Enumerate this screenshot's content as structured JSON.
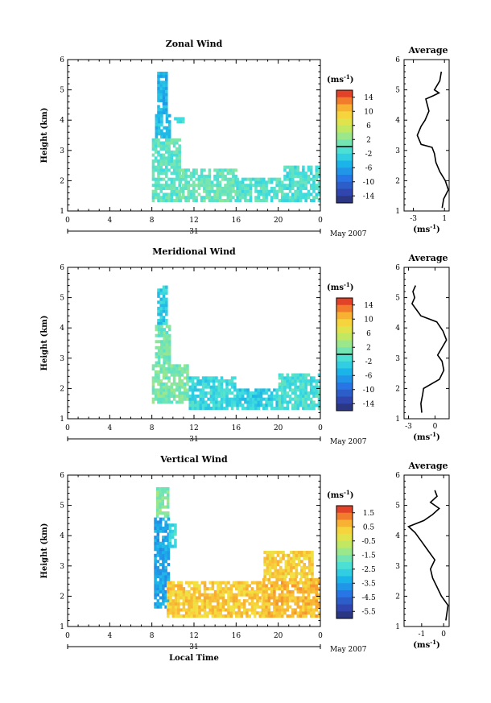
{
  "panels": [
    {
      "id": "zonal",
      "title": "Zonal Wind",
      "ylabel": "Height (km)",
      "ylim": [
        1,
        6
      ],
      "yticks": [
        "1",
        "2",
        "3",
        "4",
        "5",
        "6"
      ],
      "xticks": [
        "0",
        "4",
        "8",
        "12",
        "16",
        "20",
        "0"
      ],
      "xlim": [
        0,
        24
      ],
      "date_day": "31",
      "date_month": "May 2007",
      "colorbar": {
        "unit": "(ms",
        "unit_exp": "-1",
        "unit_close": ")",
        "labels": [
          "14",
          "10",
          "6",
          "2",
          "-2",
          "-6",
          "-10",
          "-14"
        ],
        "range": [
          -16,
          16
        ],
        "zero_line": 2
      },
      "average": {
        "title": "Average",
        "unit": "(ms",
        "unit_exp": "-1",
        "unit_close": ")",
        "xticks": [
          "-3",
          "1"
        ],
        "xtick_values": [
          -3,
          1
        ],
        "xlim": [
          -4.2,
          1.6
        ],
        "ylim": [
          1,
          6
        ],
        "yticks": [
          "1",
          "2",
          "3",
          "4",
          "5",
          "6"
        ]
      }
    },
    {
      "id": "meridional",
      "title": "Meridional Wind",
      "ylabel": "Height (km)",
      "ylim": [
        1,
        6
      ],
      "yticks": [
        "1",
        "2",
        "3",
        "4",
        "5",
        "6"
      ],
      "xticks": [
        "0",
        "4",
        "8",
        "12",
        "16",
        "20",
        "0"
      ],
      "xlim": [
        0,
        24
      ],
      "date_day": "31",
      "date_month": "May 2007",
      "colorbar": {
        "unit": "(ms",
        "unit_exp": "-1",
        "unit_close": ")",
        "labels": [
          "14",
          "10",
          "6",
          "2",
          "-2",
          "-6",
          "-10",
          "-14"
        ],
        "range": [
          -16,
          16
        ],
        "zero_line": 2
      },
      "average": {
        "title": "Average",
        "unit": "(ms",
        "unit_exp": "-1",
        "unit_close": ")",
        "xticks": [
          "-3",
          "0"
        ],
        "xtick_values": [
          -3,
          0
        ],
        "xlim": [
          -3.5,
          1.6
        ],
        "ylim": [
          1,
          6
        ],
        "yticks": [
          "1",
          "2",
          "3",
          "4",
          "5",
          "6"
        ]
      }
    },
    {
      "id": "vertical",
      "title": "Vertical Wind",
      "ylabel": "Height (km)",
      "xlabel": "Local Time",
      "ylim": [
        1,
        6
      ],
      "yticks": [
        "1",
        "2",
        "3",
        "4",
        "5",
        "6"
      ],
      "xticks": [
        "0",
        "4",
        "8",
        "12",
        "16",
        "20",
        "0"
      ],
      "xlim": [
        0,
        24
      ],
      "date_day": "31",
      "date_month": "May 2007",
      "colorbar": {
        "unit": "(ms",
        "unit_exp": "-1",
        "unit_close": ")",
        "labels": [
          "1.5",
          "0.5",
          "-0.5",
          "-1.5",
          "-2.5",
          "-3.5",
          "-4.5",
          "-5.5"
        ],
        "range": [
          -6,
          2
        ],
        "zero_line": null
      },
      "average": {
        "title": "Average",
        "unit": "(ms",
        "unit_exp": "-1",
        "unit_close": ")",
        "xticks": [
          "-1",
          "0"
        ],
        "xtick_values": [
          -1,
          0
        ],
        "xlim": [
          -1.8,
          0.25
        ],
        "ylim": [
          1,
          6
        ],
        "yticks": [
          "1",
          "2",
          "3",
          "4",
          "5",
          "6"
        ]
      }
    }
  ],
  "chart_data": [
    {
      "type": "heatmap",
      "title": "Zonal Wind",
      "ylabel": "Height (km)",
      "ylim": [
        1,
        6
      ],
      "xlim": [
        0,
        24
      ],
      "color_range": [
        -16,
        16
      ],
      "cell_size": [
        0.25,
        0.1
      ],
      "regions": [
        {
          "x": [
            8.5,
            9.5
          ],
          "y": [
            4.2,
            5.6
          ],
          "value": -5
        },
        {
          "x": [
            8.3,
            9.7
          ],
          "y": [
            3.4,
            4.2
          ],
          "value": -4
        },
        {
          "x": [
            10.1,
            11.0
          ],
          "y": [
            3.9,
            4.1
          ],
          "value": -2
        },
        {
          "x": [
            8.0,
            10.6
          ],
          "y": [
            1.3,
            3.4
          ],
          "value": 0
        },
        {
          "x": [
            10.6,
            16.0
          ],
          "y": [
            1.3,
            2.4
          ],
          "value": 0.5
        },
        {
          "x": [
            16.0,
            20.5
          ],
          "y": [
            1.3,
            2.1
          ],
          "value": -0.5
        },
        {
          "x": [
            20.5,
            24.0
          ],
          "y": [
            1.3,
            2.5
          ],
          "value": -1
        }
      ]
    },
    {
      "type": "line",
      "title": "Average",
      "note": "Zonal Wind mean profile",
      "x": [
        0.6,
        0.4,
        -0.3,
        0.3,
        -0.5,
        -1.4,
        -1.0,
        -1.5,
        -2.0,
        -2.5,
        -2.0,
        -0.6,
        -0.3,
        -0.1,
        0.4,
        1.1,
        1.5,
        0.9,
        0.7
      ],
      "y": [
        5.6,
        5.3,
        5.0,
        4.9,
        4.8,
        4.7,
        4.3,
        4.0,
        3.8,
        3.5,
        3.2,
        3.1,
        2.9,
        2.6,
        2.3,
        2.0,
        1.7,
        1.4,
        1.1
      ]
    },
    {
      "type": "heatmap",
      "title": "Meridional Wind",
      "ylabel": "Height (km)",
      "ylim": [
        1,
        6
      ],
      "xlim": [
        0,
        24
      ],
      "color_range": [
        -16,
        16
      ],
      "cell_size": [
        0.25,
        0.1
      ],
      "regions": [
        {
          "x": [
            8.5,
            9.5
          ],
          "y": [
            4.1,
            5.4
          ],
          "value": -3
        },
        {
          "x": [
            8.3,
            9.8
          ],
          "y": [
            2.8,
            4.1
          ],
          "value": 1
        },
        {
          "x": [
            8.0,
            11.5
          ],
          "y": [
            1.5,
            2.8
          ],
          "value": 1.5
        },
        {
          "x": [
            11.5,
            16.0
          ],
          "y": [
            1.3,
            2.4
          ],
          "value": -2
        },
        {
          "x": [
            16.0,
            20.0
          ],
          "y": [
            1.3,
            2.0
          ],
          "value": -3
        },
        {
          "x": [
            20.0,
            24.0
          ],
          "y": [
            1.3,
            2.5
          ],
          "value": -1
        }
      ]
    },
    {
      "type": "line",
      "title": "Average",
      "note": "Meridional Wind mean profile",
      "x": [
        -2.2,
        -2.5,
        -2.3,
        -2.6,
        -2.1,
        -1.6,
        0.2,
        0.9,
        1.3,
        0.7,
        0.3,
        0.8,
        1.0,
        0.5,
        -1.3,
        -1.4,
        -1.6,
        -1.5
      ],
      "y": [
        5.4,
        5.2,
        5.0,
        4.8,
        4.6,
        4.4,
        4.2,
        3.9,
        3.6,
        3.3,
        3.1,
        2.9,
        2.6,
        2.3,
        2.0,
        1.8,
        1.5,
        1.2
      ]
    },
    {
      "type": "heatmap",
      "title": "Vertical Wind",
      "ylabel": "Height (km)",
      "xlabel": "Local Time",
      "ylim": [
        1,
        6
      ],
      "xlim": [
        0,
        24
      ],
      "color_range": [
        -6,
        2
      ],
      "cell_size": [
        0.25,
        0.1
      ],
      "regions": [
        {
          "x": [
            8.4,
            9.5
          ],
          "y": [
            4.6,
            5.6
          ],
          "value": -1.5
        },
        {
          "x": [
            8.2,
            9.6
          ],
          "y": [
            1.6,
            4.6
          ],
          "value": -3.5
        },
        {
          "x": [
            9.6,
            10.2
          ],
          "y": [
            3.6,
            4.4
          ],
          "value": -2.5
        },
        {
          "x": [
            9.4,
            18.5
          ],
          "y": [
            1.3,
            2.5
          ],
          "value": 0.4
        },
        {
          "x": [
            18.5,
            24.0
          ],
          "y": [
            1.3,
            2.6
          ],
          "value": 0.6
        },
        {
          "x": [
            18.6,
            23.2
          ],
          "y": [
            2.6,
            3.5
          ],
          "value": 0.3
        }
      ]
    },
    {
      "type": "line",
      "title": "Average",
      "note": "Vertical Wind mean profile",
      "x": [
        -0.4,
        -0.3,
        -0.6,
        -0.2,
        -0.5,
        -0.9,
        -1.6,
        -1.3,
        -1.0,
        -0.7,
        -0.4,
        -0.6,
        -0.5,
        -0.3,
        -0.1,
        0.2,
        0.1
      ],
      "y": [
        5.5,
        5.3,
        5.1,
        4.9,
        4.7,
        4.5,
        4.3,
        4.1,
        3.8,
        3.5,
        3.2,
        2.9,
        2.6,
        2.3,
        2.0,
        1.7,
        1.2
      ]
    }
  ]
}
